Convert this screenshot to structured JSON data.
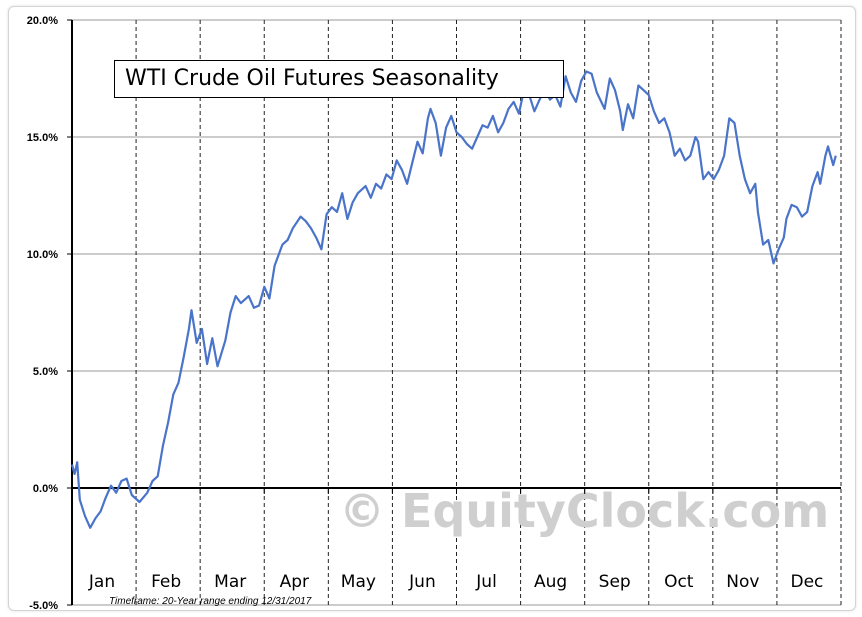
{
  "chart_data": {
    "type": "line",
    "title": "WTI Crude Oil Futures Seasonality",
    "xlabel": "",
    "ylabel": "",
    "ylim": [
      -5,
      20
    ],
    "y_ticks": [
      "20.0%",
      "15.0%",
      "10.0%",
      "5.0%",
      "0.0%",
      "-5.0%"
    ],
    "y_tick_values": [
      20,
      15,
      10,
      5,
      0,
      -5
    ],
    "x_tick_labels": [
      "Jan",
      "Feb",
      "Mar",
      "Apr",
      "May",
      "Jun",
      "Jul",
      "Aug",
      "Sep",
      "Oct",
      "Nov",
      "Dec"
    ],
    "grid": {
      "horizontal": true,
      "vertical": "dashed-month-separators"
    },
    "line_color": "#4a74c9",
    "series": [
      {
        "values": [
          [
            0.0,
            1.0
          ],
          [
            0.1,
            0.6
          ],
          [
            0.2,
            1.1
          ],
          [
            0.3,
            -0.5
          ],
          [
            0.5,
            -1.2
          ],
          [
            0.7,
            -1.7
          ],
          [
            0.9,
            -1.3
          ],
          [
            1.1,
            -1.0
          ],
          [
            1.3,
            -0.4
          ],
          [
            1.5,
            0.1
          ],
          [
            1.7,
            -0.2
          ],
          [
            1.9,
            0.3
          ],
          [
            2.1,
            0.4
          ],
          [
            2.3,
            -0.3
          ],
          [
            2.6,
            -0.6
          ],
          [
            2.9,
            -0.2
          ],
          [
            3.1,
            0.3
          ],
          [
            3.3,
            0.5
          ],
          [
            3.5,
            1.8
          ],
          [
            3.7,
            2.8
          ],
          [
            3.9,
            4.0
          ],
          [
            4.1,
            4.5
          ],
          [
            4.3,
            5.6
          ],
          [
            4.5,
            6.8
          ],
          [
            4.6,
            7.6
          ],
          [
            4.8,
            6.2
          ],
          [
            5.0,
            6.8
          ],
          [
            5.2,
            5.3
          ],
          [
            5.4,
            6.4
          ],
          [
            5.6,
            5.2
          ],
          [
            5.9,
            6.3
          ],
          [
            6.1,
            7.5
          ],
          [
            6.3,
            8.2
          ],
          [
            6.5,
            7.9
          ],
          [
            6.8,
            8.2
          ],
          [
            7.0,
            7.7
          ],
          [
            7.2,
            7.8
          ],
          [
            7.4,
            8.6
          ],
          [
            7.6,
            8.1
          ],
          [
            7.8,
            9.5
          ],
          [
            8.1,
            10.4
          ],
          [
            8.3,
            10.6
          ],
          [
            8.5,
            11.1
          ],
          [
            8.8,
            11.6
          ],
          [
            9.0,
            11.4
          ],
          [
            9.2,
            11.1
          ],
          [
            9.4,
            10.7
          ],
          [
            9.6,
            10.2
          ],
          [
            9.8,
            11.7
          ],
          [
            10.0,
            12.0
          ],
          [
            10.2,
            11.8
          ],
          [
            10.4,
            12.6
          ],
          [
            10.6,
            11.5
          ],
          [
            10.8,
            12.2
          ],
          [
            11.0,
            12.6
          ],
          [
            11.3,
            12.9
          ],
          [
            11.5,
            12.4
          ],
          [
            11.7,
            13.0
          ],
          [
            11.9,
            12.8
          ],
          [
            12.1,
            13.4
          ],
          [
            12.3,
            13.2
          ],
          [
            12.5,
            14.0
          ],
          [
            12.7,
            13.6
          ],
          [
            12.9,
            13.0
          ],
          [
            13.1,
            13.9
          ],
          [
            13.3,
            14.8
          ],
          [
            13.5,
            14.3
          ],
          [
            13.7,
            15.8
          ],
          [
            13.8,
            16.2
          ],
          [
            14.0,
            15.6
          ],
          [
            14.2,
            14.2
          ],
          [
            14.4,
            15.4
          ],
          [
            14.6,
            15.9
          ],
          [
            14.8,
            15.2
          ],
          [
            15.0,
            15.0
          ],
          [
            15.2,
            14.7
          ],
          [
            15.4,
            14.5
          ],
          [
            15.6,
            15.0
          ],
          [
            15.8,
            15.5
          ],
          [
            16.0,
            15.4
          ],
          [
            16.2,
            15.9
          ],
          [
            16.4,
            15.2
          ],
          [
            16.6,
            15.6
          ],
          [
            16.8,
            16.2
          ],
          [
            17.0,
            16.5
          ],
          [
            17.2,
            16.0
          ],
          [
            17.4,
            17.0
          ],
          [
            17.6,
            16.8
          ],
          [
            17.8,
            16.1
          ],
          [
            18.0,
            16.6
          ],
          [
            18.2,
            17.0
          ],
          [
            18.4,
            16.6
          ],
          [
            18.6,
            16.8
          ],
          [
            18.8,
            16.3
          ],
          [
            19.0,
            17.6
          ],
          [
            19.2,
            16.9
          ],
          [
            19.4,
            16.5
          ],
          [
            19.6,
            17.4
          ],
          [
            19.8,
            17.8
          ],
          [
            20.0,
            17.7
          ],
          [
            20.2,
            16.9
          ],
          [
            20.5,
            16.2
          ],
          [
            20.7,
            17.5
          ],
          [
            20.9,
            17.0
          ],
          [
            21.1,
            16.1
          ],
          [
            21.2,
            15.3
          ],
          [
            21.4,
            16.4
          ],
          [
            21.6,
            15.8
          ],
          [
            21.8,
            17.2
          ],
          [
            22.0,
            17.0
          ],
          [
            22.2,
            16.8
          ],
          [
            22.4,
            16.1
          ],
          [
            22.6,
            15.6
          ],
          [
            22.8,
            15.8
          ],
          [
            23.0,
            15.2
          ],
          [
            23.2,
            14.2
          ],
          [
            23.4,
            14.5
          ],
          [
            23.6,
            14.0
          ],
          [
            23.8,
            14.2
          ],
          [
            24.0,
            15.0
          ],
          [
            24.1,
            14.8
          ],
          [
            24.3,
            13.2
          ],
          [
            24.5,
            13.5
          ],
          [
            24.7,
            13.2
          ],
          [
            24.9,
            13.6
          ],
          [
            25.1,
            14.2
          ],
          [
            25.3,
            15.8
          ],
          [
            25.5,
            15.6
          ],
          [
            25.7,
            14.2
          ],
          [
            25.9,
            13.2
          ],
          [
            26.1,
            12.6
          ],
          [
            26.3,
            13.0
          ],
          [
            26.4,
            11.8
          ],
          [
            26.6,
            10.4
          ],
          [
            26.8,
            10.6
          ],
          [
            27.0,
            9.6
          ],
          [
            27.2,
            10.2
          ],
          [
            27.4,
            10.7
          ],
          [
            27.5,
            11.5
          ],
          [
            27.7,
            12.1
          ],
          [
            27.9,
            12.0
          ],
          [
            28.1,
            11.6
          ],
          [
            28.3,
            11.8
          ],
          [
            28.5,
            12.9
          ],
          [
            28.7,
            13.5
          ],
          [
            28.8,
            13.0
          ],
          [
            29.0,
            14.2
          ],
          [
            29.1,
            14.6
          ],
          [
            29.3,
            13.8
          ],
          [
            29.4,
            14.2
          ]
        ]
      }
    ]
  },
  "watermark": "© EquityClock.com",
  "timeframe": "Timeframe:  20-Year range ending 12/31/2017"
}
